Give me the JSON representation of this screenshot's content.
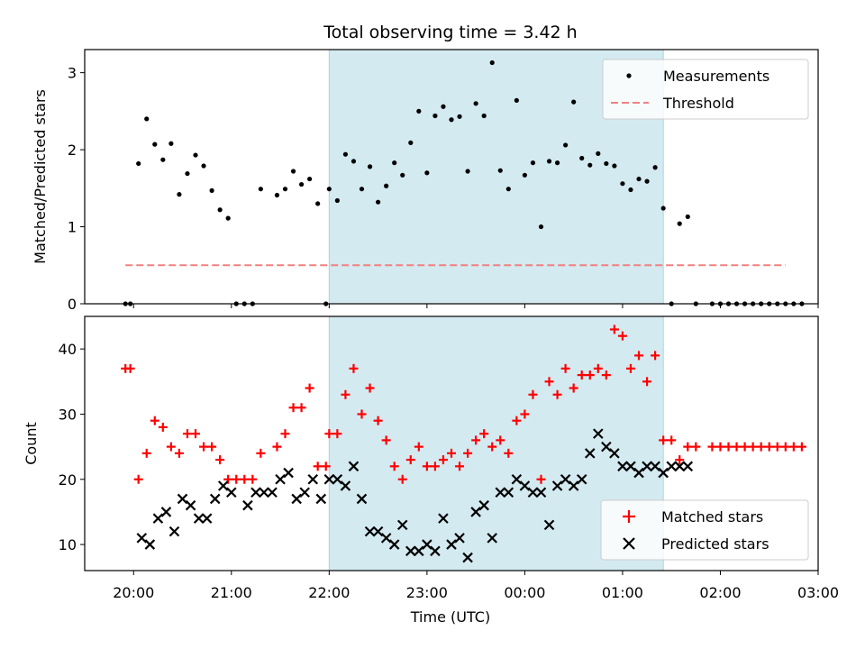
{
  "chart_data": [
    {
      "type": "scatter",
      "panel": "top",
      "title": "Total observing time = 3.42 h",
      "ylabel": "Matched/Predicted stars",
      "ylim": [
        0,
        3.3
      ],
      "yticks": [
        "0",
        "1",
        "2",
        "3"
      ],
      "highlight_span_x": [
        "22:00",
        "01:25"
      ],
      "highlight_color": "#d4eaf1",
      "legend": {
        "placement": "top-right",
        "entries": [
          "Measurements",
          "Threshold"
        ]
      },
      "threshold": {
        "name": "Threshold",
        "value": 0.5,
        "x_range": [
          "19:55",
          "02:40"
        ],
        "color": "#f08080"
      },
      "series": [
        {
          "name": "Measurements",
          "color": "#000000",
          "x": [
            "19:55",
            "19:58",
            "20:03",
            "20:08",
            "20:13",
            "20:18",
            "20:23",
            "20:28",
            "20:33",
            "20:38",
            "20:43",
            "20:48",
            "20:53",
            "20:58",
            "21:03",
            "21:08",
            "21:13",
            "21:18",
            "21:28",
            "21:33",
            "21:38",
            "21:43",
            "21:48",
            "21:53",
            "21:58",
            "22:00",
            "22:05",
            "22:10",
            "22:15",
            "22:20",
            "22:25",
            "22:30",
            "22:35",
            "22:40",
            "22:45",
            "22:50",
            "22:55",
            "23:00",
            "23:05",
            "23:10",
            "23:15",
            "23:20",
            "23:25",
            "23:30",
            "23:35",
            "23:40",
            "23:45",
            "23:50",
            "23:55",
            "00:00",
            "00:05",
            "00:10",
            "00:15",
            "00:20",
            "00:25",
            "00:30",
            "00:35",
            "00:40",
            "00:45",
            "00:50",
            "00:55",
            "01:00",
            "01:05",
            "01:10",
            "01:15",
            "01:20",
            "01:25",
            "01:30",
            "01:35",
            "01:40",
            "01:45",
            "01:55",
            "02:00",
            "02:05",
            "02:10",
            "02:15",
            "02:20",
            "02:25",
            "02:30",
            "02:35",
            "02:40",
            "02:45",
            "02:50"
          ],
          "y": [
            0,
            0,
            1.82,
            2.4,
            2.07,
            1.87,
            2.08,
            1.42,
            1.69,
            1.93,
            1.79,
            1.47,
            1.22,
            1.11,
            0,
            0,
            0,
            1.49,
            1.41,
            1.49,
            1.72,
            1.55,
            1.62,
            1.3,
            0,
            1.49,
            1.34,
            1.94,
            1.85,
            1.49,
            1.78,
            1.32,
            1.53,
            1.83,
            1.67,
            2.09,
            2.5,
            1.7,
            2.44,
            2.56,
            2.39,
            2.43,
            1.72,
            2.6,
            2.44,
            3.13,
            1.73,
            1.49,
            2.64,
            1.67,
            1.83,
            1.0,
            1.85,
            1.83,
            2.06,
            2.62,
            1.89,
            1.8,
            1.95,
            1.82,
            1.79,
            1.56,
            1.48,
            1.62,
            1.59,
            1.77,
            1.24,
            0,
            1.04,
            1.13,
            0,
            0,
            0,
            0,
            0,
            0,
            0,
            0,
            0,
            0,
            0,
            0,
            0
          ]
        }
      ]
    },
    {
      "type": "scatter",
      "panel": "bottom",
      "xlabel": "Time (UTC)",
      "ylabel": "Count",
      "ylim": [
        6,
        45
      ],
      "yticks": [
        "10",
        "20",
        "30",
        "40"
      ],
      "xticks": [
        "20:00",
        "21:00",
        "22:00",
        "23:00",
        "00:00",
        "01:00",
        "02:00",
        "03:00"
      ],
      "xlim": [
        "19:30",
        "03:00"
      ],
      "highlight_span_x": [
        "22:00",
        "01:25"
      ],
      "highlight_color": "#d4eaf1",
      "legend": {
        "placement": "bottom-right",
        "entries": [
          "Matched stars",
          "Predicted stars"
        ]
      },
      "series": [
        {
          "name": "Matched stars",
          "marker": "+",
          "color": "#ff0000",
          "x": [
            "19:55",
            "19:58",
            "20:03",
            "20:08",
            "20:13",
            "20:18",
            "20:23",
            "20:28",
            "20:33",
            "20:38",
            "20:43",
            "20:48",
            "20:53",
            "20:58",
            "21:03",
            "21:08",
            "21:13",
            "21:18",
            "21:28",
            "21:33",
            "21:38",
            "21:43",
            "21:48",
            "21:53",
            "21:58",
            "22:00",
            "22:05",
            "22:10",
            "22:15",
            "22:20",
            "22:25",
            "22:30",
            "22:35",
            "22:40",
            "22:45",
            "22:50",
            "22:55",
            "23:00",
            "23:05",
            "23:10",
            "23:15",
            "23:20",
            "23:25",
            "23:30",
            "23:35",
            "23:40",
            "23:45",
            "23:50",
            "23:55",
            "00:00",
            "00:05",
            "00:10",
            "00:15",
            "00:20",
            "00:25",
            "00:30",
            "00:35",
            "00:40",
            "00:45",
            "00:50",
            "00:55",
            "01:00",
            "01:05",
            "01:10",
            "01:15",
            "01:20",
            "01:25",
            "01:30",
            "01:35",
            "01:40",
            "01:45",
            "01:55",
            "02:00",
            "02:05",
            "02:10",
            "02:15",
            "02:20",
            "02:25",
            "02:30",
            "02:35",
            "02:40",
            "02:45",
            "02:50"
          ],
          "y": [
            37,
            37,
            20,
            24,
            29,
            28,
            25,
            24,
            27,
            27,
            25,
            25,
            23,
            20,
            20,
            20,
            20,
            24,
            25,
            27,
            31,
            31,
            34,
            22,
            22,
            27,
            27,
            33,
            37,
            30,
            34,
            29,
            26,
            22,
            20,
            23,
            25,
            22,
            22,
            23,
            24,
            22,
            24,
            26,
            27,
            25,
            26,
            24,
            29,
            30,
            33,
            20,
            35,
            33,
            37,
            34,
            36,
            36,
            37,
            36,
            43,
            42,
            37,
            39,
            35,
            39,
            26,
            26,
            23,
            25,
            25,
            25,
            25,
            25,
            25,
            25,
            25,
            25,
            25,
            25,
            25,
            25,
            25
          ]
        },
        {
          "name": "Predicted stars",
          "marker": "x",
          "color": "#000000",
          "x": [
            "20:05",
            "20:10",
            "20:15",
            "20:20",
            "20:25",
            "20:30",
            "20:35",
            "20:40",
            "20:45",
            "20:50",
            "20:55",
            "21:00",
            "21:10",
            "21:15",
            "21:20",
            "21:25",
            "21:30",
            "21:35",
            "21:40",
            "21:45",
            "21:50",
            "21:55",
            "22:00",
            "22:05",
            "22:10",
            "22:15",
            "22:20",
            "22:25",
            "22:30",
            "22:35",
            "22:40",
            "22:45",
            "22:50",
            "22:55",
            "23:00",
            "23:05",
            "23:10",
            "23:15",
            "23:20",
            "23:25",
            "23:30",
            "23:35",
            "23:40",
            "23:45",
            "23:50",
            "23:55",
            "00:00",
            "00:05",
            "00:10",
            "00:15",
            "00:20",
            "00:25",
            "00:30",
            "00:35",
            "00:40",
            "00:45",
            "00:50",
            "00:55",
            "01:00",
            "01:05",
            "01:10",
            "01:15",
            "01:20",
            "01:25",
            "01:30",
            "01:35",
            "01:40"
          ],
          "y": [
            11,
            10,
            14,
            15,
            12,
            17,
            16,
            14,
            14,
            17,
            19,
            18,
            16,
            18,
            18,
            18,
            20,
            21,
            17,
            18,
            20,
            17,
            20,
            20,
            19,
            22,
            17,
            12,
            12,
            11,
            10,
            13,
            9,
            9,
            10,
            9,
            14,
            10,
            11,
            8,
            15,
            16,
            11,
            18,
            18,
            20,
            19,
            18,
            18,
            13,
            19,
            20,
            19,
            20,
            24,
            27,
            25,
            24,
            22,
            22,
            21,
            22,
            22,
            21,
            22,
            22,
            22
          ]
        }
      ]
    }
  ]
}
